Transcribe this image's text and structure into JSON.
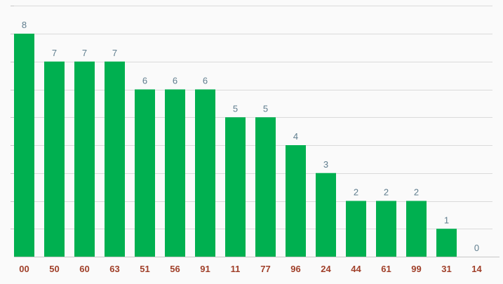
{
  "chart_data": {
    "type": "bar",
    "title": "",
    "xlabel": "",
    "ylabel": "",
    "categories": [
      "00",
      "50",
      "60",
      "63",
      "51",
      "56",
      "91",
      "11",
      "77",
      "96",
      "24",
      "44",
      "61",
      "99",
      "31",
      "14"
    ],
    "values": [
      8,
      7,
      7,
      7,
      6,
      6,
      6,
      5,
      5,
      4,
      3,
      2,
      2,
      2,
      1,
      0
    ],
    "ylim": [
      0,
      9
    ],
    "grid": true,
    "legend": "none",
    "colors": {
      "bar": "#00b050",
      "value_label": "#5f7d8e",
      "category_label": "#a0402a",
      "grid": "#dadada",
      "background": "#fafafa"
    }
  }
}
